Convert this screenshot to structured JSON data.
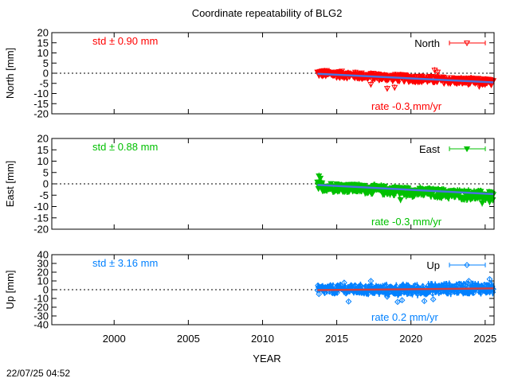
{
  "title": "Coordinate repeatability of BLG2",
  "xlabel": "YEAR",
  "timestamp": "22/07/25 04:52",
  "chart_data": {
    "type": "scatter",
    "title": "Coordinate repeatability of BLG2",
    "xlabel": "YEAR",
    "xlim": [
      1995.8,
      2025.6
    ],
    "xticks": [
      2000,
      2005,
      2010,
      2015,
      2020,
      2025
    ],
    "xtick_labels": [
      "2000",
      "2005",
      "2010",
      "2015",
      "2020",
      "2025"
    ],
    "data_start": 2013.7,
    "data_end": 2025.55,
    "panels": [
      {
        "id": "north",
        "ylabel": "North [mm]",
        "legend": "North",
        "legend_position": "top-right",
        "color": "#ff0000",
        "trend_color": "#4a72e0",
        "marker": "triangle-down-open",
        "ylim": [
          -20,
          20
        ],
        "yticks": [
          -20,
          -15,
          -10,
          -5,
          0,
          5,
          10,
          15,
          20
        ],
        "ytick_labels": [
          "-20",
          "-15",
          "-10",
          "-5",
          "0",
          "5",
          "10",
          "15",
          "20"
        ],
        "std_text": "std ± 0.90 mm",
        "rate_text": "rate -0.3 mm/yr",
        "trend": {
          "x": [
            2013.7,
            2025.55
          ],
          "y": [
            -0.3,
            -4.5
          ]
        },
        "band": [
          {
            "x": 2013.7,
            "lo": -2.0,
            "hi": 2.0
          },
          {
            "x": 2015.0,
            "lo": -2.6,
            "hi": 1.6
          },
          {
            "x": 2017.0,
            "lo": -3.5,
            "hi": 0.6
          },
          {
            "x": 2019.0,
            "lo": -4.4,
            "hi": -0.1
          },
          {
            "x": 2021.0,
            "lo": -5.0,
            "hi": -0.9
          },
          {
            "x": 2023.0,
            "lo": -5.8,
            "hi": -1.6
          },
          {
            "x": 2025.55,
            "lo": -6.5,
            "hi": -2.4
          }
        ],
        "outliers": [
          {
            "x": 2018.4,
            "y": -7.5
          },
          {
            "x": 2018.9,
            "y": -7.0
          },
          {
            "x": 2021.6,
            "y": 1.5
          },
          {
            "x": 2021.8,
            "y": 0.5
          },
          {
            "x": 2017.3,
            "y": -5.5
          },
          {
            "x": 2024.6,
            "y": -6.5
          }
        ]
      },
      {
        "id": "east",
        "ylabel": "East [mm]",
        "legend": "East",
        "legend_position": "top-right",
        "color": "#00c000",
        "trend_color": "#4a72e0",
        "marker": "triangle-down-filled",
        "ylim": [
          -20,
          20
        ],
        "yticks": [
          -20,
          -15,
          -10,
          -5,
          0,
          5,
          10,
          15,
          20
        ],
        "ytick_labels": [
          "-20",
          "-15",
          "-10",
          "-5",
          "0",
          "5",
          "10",
          "15",
          "20"
        ],
        "std_text": "std ± 0.88 mm",
        "rate_text": "rate -0.3 mm/yr",
        "trend": {
          "x": [
            2013.7,
            2025.55
          ],
          "y": [
            -0.5,
            -4.5
          ]
        },
        "band": [
          {
            "x": 2013.7,
            "lo": -3.5,
            "hi": 1.5
          },
          {
            "x": 2015.0,
            "lo": -3.8,
            "hi": 0.8
          },
          {
            "x": 2017.0,
            "lo": -4.6,
            "hi": 0.0
          },
          {
            "x": 2019.0,
            "lo": -5.5,
            "hi": -0.7
          },
          {
            "x": 2021.0,
            "lo": -6.2,
            "hi": -1.5
          },
          {
            "x": 2023.0,
            "lo": -7.0,
            "hi": -2.2
          },
          {
            "x": 2025.55,
            "lo": -8.0,
            "hi": -3.0
          }
        ],
        "outliers": [
          {
            "x": 2013.8,
            "y": 3.5
          },
          {
            "x": 2013.9,
            "y": 2.5
          },
          {
            "x": 2019.3,
            "y": -7.0
          },
          {
            "x": 2024.8,
            "y": -8.5
          },
          {
            "x": 2025.3,
            "y": -8.0
          }
        ]
      },
      {
        "id": "up",
        "ylabel": "Up [mm]",
        "legend": "Up",
        "legend_position": "top-right",
        "color": "#0080ff",
        "trend_color": "#d24040",
        "marker": "diamond-open",
        "ylim": [
          -40,
          40
        ],
        "yticks": [
          -40,
          -30,
          -20,
          -10,
          0,
          10,
          20,
          30,
          40
        ],
        "ytick_labels": [
          "-40",
          "-30",
          "-20",
          "-10",
          "0",
          "10",
          "20",
          "30",
          "40"
        ],
        "std_text": "std ± 3.16 mm",
        "rate_text": "rate  0.2 mm/yr",
        "trend": {
          "x": [
            2013.7,
            2025.55
          ],
          "y": [
            -0.5,
            1.5
          ]
        },
        "band": [
          {
            "x": 2013.7,
            "lo": -6.0,
            "hi": 6.0
          },
          {
            "x": 2016.0,
            "lo": -5.5,
            "hi": 6.5
          },
          {
            "x": 2018.0,
            "lo": -6.5,
            "hi": 6.0
          },
          {
            "x": 2020.0,
            "lo": -7.0,
            "hi": 6.5
          },
          {
            "x": 2022.0,
            "lo": -5.5,
            "hi": 7.5
          },
          {
            "x": 2024.0,
            "lo": -5.0,
            "hi": 8.5
          },
          {
            "x": 2025.55,
            "lo": -5.5,
            "hi": 8.0
          }
        ],
        "outliers": [
          {
            "x": 2013.8,
            "y": -5.0
          },
          {
            "x": 2015.5,
            "y": 8.0
          },
          {
            "x": 2015.8,
            "y": -13.5
          },
          {
            "x": 2017.3,
            "y": 10.0
          },
          {
            "x": 2018.4,
            "y": -8.0
          },
          {
            "x": 2019.1,
            "y": -14.0
          },
          {
            "x": 2019.4,
            "y": -12.0
          },
          {
            "x": 2020.9,
            "y": -13.0
          },
          {
            "x": 2021.5,
            "y": -11.0
          },
          {
            "x": 2023.9,
            "y": 10.0
          },
          {
            "x": 2025.3,
            "y": 12.0
          }
        ]
      }
    ]
  }
}
